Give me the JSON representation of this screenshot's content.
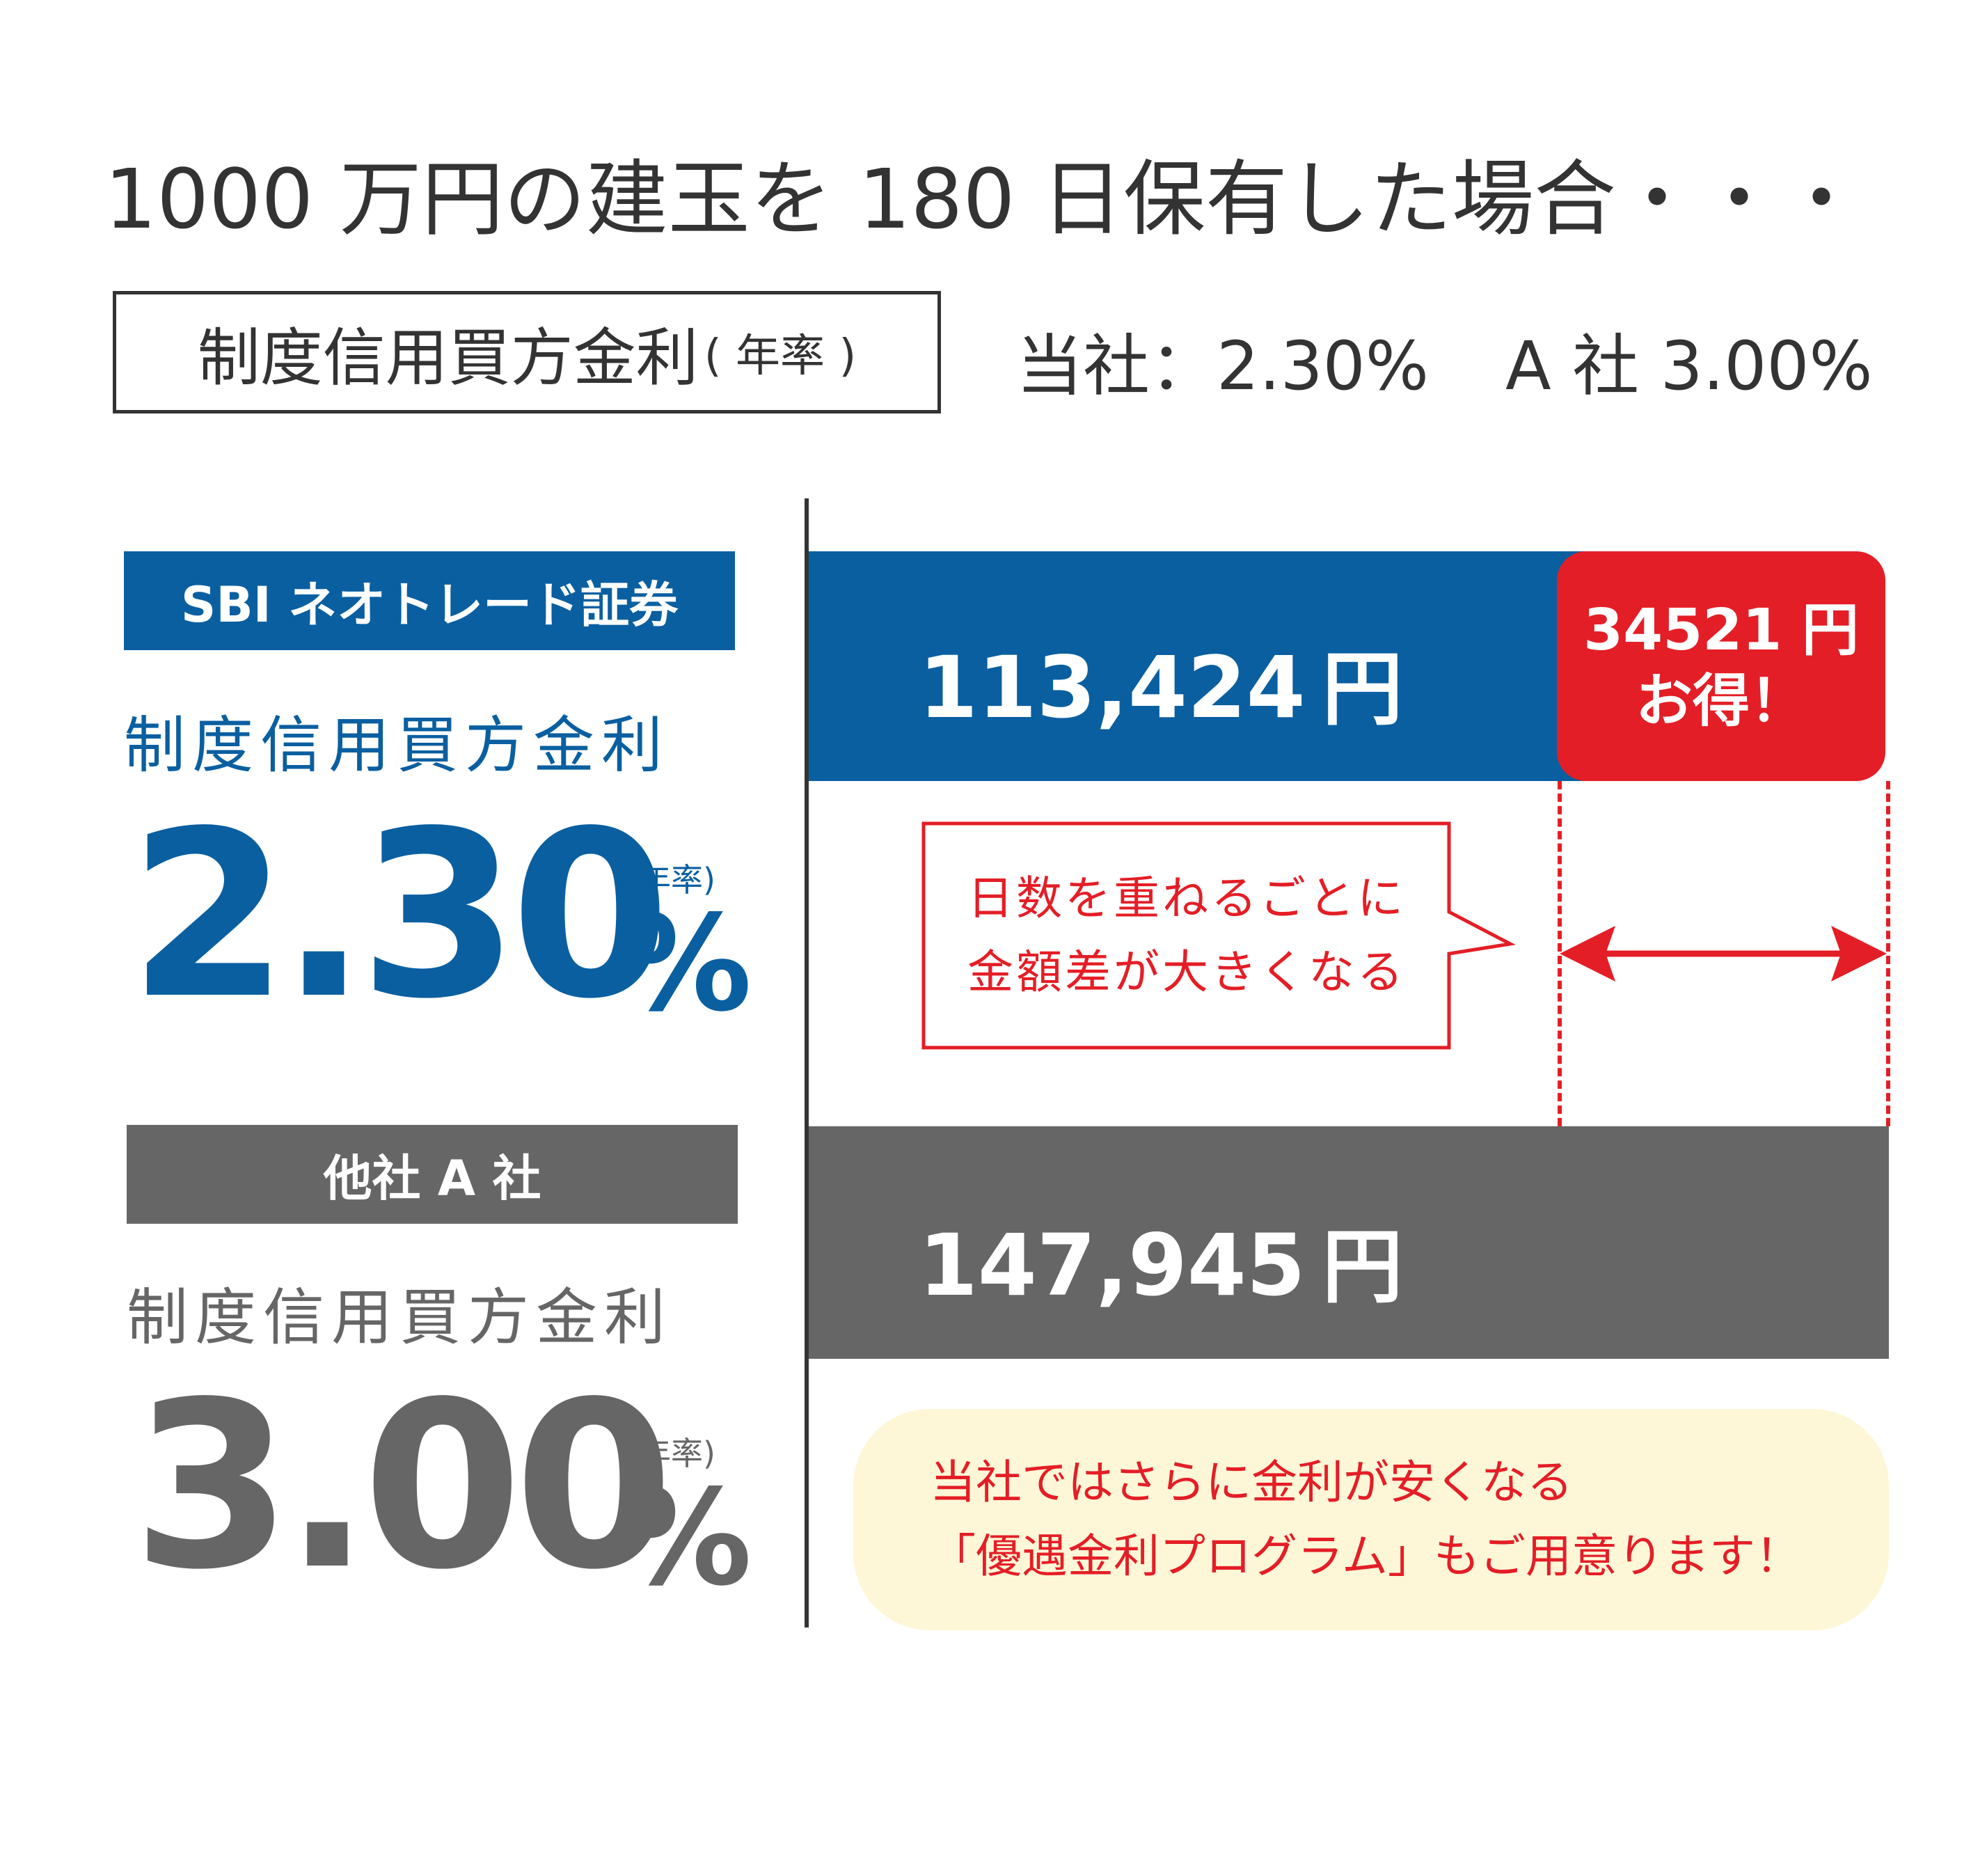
{
  "title": "1000 万円の建玉を 180 日保有した場合・・・",
  "rate_box": {
    "label": "制度信用買方金利",
    "suffix": "( 年率 )"
  },
  "rates_summary": {
    "ours": "当社：2.30%",
    "other": "A 社 3.00%"
  },
  "sbi": {
    "name": "SBI ネオトレード証券",
    "rate_label": "制度信用買方金利",
    "rate_number": "2.30",
    "rate_unit": "(年率)",
    "rate_sign": "%"
  },
  "other_company": {
    "name": "他社 A 社",
    "rate_label": "制度信用買方金利",
    "rate_number": "3.00",
    "rate_unit": "(年率)",
    "rate_sign": "%"
  },
  "savings_badge": {
    "line1": "34521 円",
    "line2": "お得！"
  },
  "callout": {
    "line1": "日数を重ねるごとに",
    "line2": "金額差が大きくなる"
  },
  "note": {
    "line1": "当社ではさらに金利が安くなる",
    "line2": "「優遇金利プログラム」もご用意ります！"
  },
  "colors": {
    "sbi_blue": "#0a5fa0",
    "other_gray": "#666666",
    "accent_red": "#e41e26",
    "note_bg": "#fdf7d8"
  },
  "chart_data": {
    "type": "bar",
    "orientation": "horizontal",
    "categories": [
      "SBI ネオトレード証券",
      "他社 A 社"
    ],
    "values": [
      113424,
      147945
    ],
    "value_labels": [
      "113,424",
      "147,945"
    ],
    "unit": "円",
    "difference": 34521
  }
}
